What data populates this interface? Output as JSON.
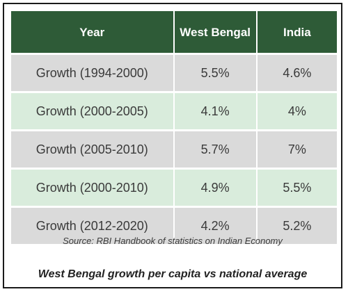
{
  "table": {
    "headers": [
      "Year",
      "West Bengal",
      "India"
    ],
    "rows": [
      [
        "Growth (1994-2000)",
        "5.5%",
        "4.6%"
      ],
      [
        "Growth (2000-2005)",
        "4.1%",
        "4%"
      ],
      [
        "Growth (2005-2010)",
        "5.7%",
        "7%"
      ],
      [
        "Growth (2000-2010)",
        "4.9%",
        "5.5%"
      ],
      [
        "Growth (2012-2020)",
        "4.2%",
        "5.2%"
      ]
    ]
  },
  "source": "Source: RBI Handbook of statistics on Indian Economy",
  "caption": "West Bengal growth per capita vs national average",
  "colors": {
    "header_bg": "#2e5b37",
    "row_grey": "#dadada",
    "row_green": "#d9ecdc"
  }
}
